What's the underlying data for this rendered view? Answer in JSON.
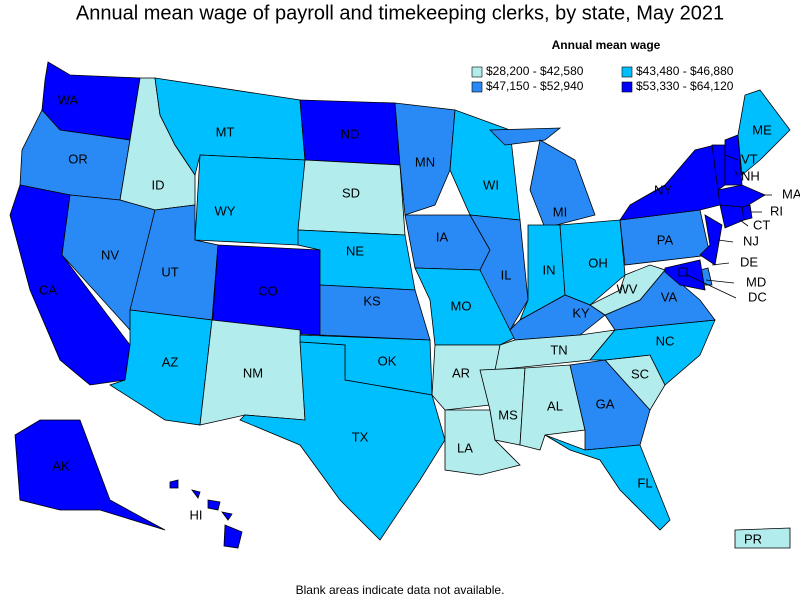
{
  "title": "Annual mean wage of payroll and timekeeping clerks, by state, May 2021",
  "note": "Blank areas indicate data not available.",
  "legend": {
    "title": "Annual mean wage",
    "items": [
      {
        "label": "$28,200 - $42,580",
        "color": "#b2ecec"
      },
      {
        "label": "$43,480 - $46,880",
        "color": "#00bfff"
      },
      {
        "label": "$47,150 - $52,940",
        "color": "#2a8af5"
      },
      {
        "label": "$53,330 - $64,120",
        "color": "#0000ff"
      }
    ]
  },
  "map": {
    "states": [
      {
        "abbr": "WA",
        "bin": 3
      },
      {
        "abbr": "OR",
        "bin": 2
      },
      {
        "abbr": "CA",
        "bin": 3
      },
      {
        "abbr": "ID",
        "bin": 0
      },
      {
        "abbr": "NV",
        "bin": 2
      },
      {
        "abbr": "MT",
        "bin": 1
      },
      {
        "abbr": "WY",
        "bin": 1
      },
      {
        "abbr": "UT",
        "bin": 2
      },
      {
        "abbr": "AZ",
        "bin": 1
      },
      {
        "abbr": "CO",
        "bin": 3
      },
      {
        "abbr": "NM",
        "bin": 0
      },
      {
        "abbr": "ND",
        "bin": 3
      },
      {
        "abbr": "SD",
        "bin": 0
      },
      {
        "abbr": "NE",
        "bin": 1
      },
      {
        "abbr": "KS",
        "bin": 2
      },
      {
        "abbr": "OK",
        "bin": 1
      },
      {
        "abbr": "TX",
        "bin": 1
      },
      {
        "abbr": "MN",
        "bin": 2
      },
      {
        "abbr": "IA",
        "bin": 2
      },
      {
        "abbr": "MO",
        "bin": 1
      },
      {
        "abbr": "AR",
        "bin": 0
      },
      {
        "abbr": "LA",
        "bin": 0
      },
      {
        "abbr": "WI",
        "bin": 1
      },
      {
        "abbr": "IL",
        "bin": 2
      },
      {
        "abbr": "MI",
        "bin": 2
      },
      {
        "abbr": "IN",
        "bin": 1
      },
      {
        "abbr": "OH",
        "bin": 1
      },
      {
        "abbr": "KY",
        "bin": 2
      },
      {
        "abbr": "TN",
        "bin": 0
      },
      {
        "abbr": "MS",
        "bin": 0
      },
      {
        "abbr": "AL",
        "bin": 0
      },
      {
        "abbr": "GA",
        "bin": 2
      },
      {
        "abbr": "FL",
        "bin": 1
      },
      {
        "abbr": "SC",
        "bin": 0
      },
      {
        "abbr": "NC",
        "bin": 1
      },
      {
        "abbr": "VA",
        "bin": 2
      },
      {
        "abbr": "WV",
        "bin": 0
      },
      {
        "abbr": "PA",
        "bin": 2
      },
      {
        "abbr": "NY",
        "bin": 3
      },
      {
        "abbr": "VT",
        "bin": 3
      },
      {
        "abbr": "NH",
        "bin": 3
      },
      {
        "abbr": "ME",
        "bin": 1
      },
      {
        "abbr": "MA",
        "bin": 3
      },
      {
        "abbr": "RI",
        "bin": 3
      },
      {
        "abbr": "CT",
        "bin": 3
      },
      {
        "abbr": "NJ",
        "bin": 3
      },
      {
        "abbr": "DE",
        "bin": 2
      },
      {
        "abbr": "MD",
        "bin": 3
      },
      {
        "abbr": "DC",
        "bin": 3
      },
      {
        "abbr": "AK",
        "bin": 3
      },
      {
        "abbr": "HI",
        "bin": 3
      },
      {
        "abbr": "PR",
        "bin": 0
      }
    ]
  }
}
